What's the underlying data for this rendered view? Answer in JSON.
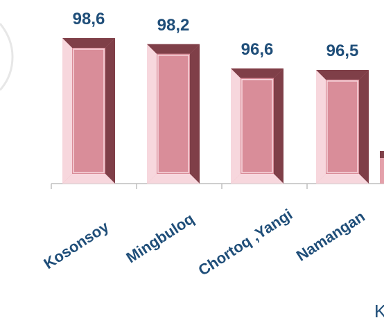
{
  "chart_data": {
    "type": "bar",
    "title": "",
    "xlabel": "",
    "ylabel": "",
    "categories": [
      "Kosonsoy",
      "Mingbuloq",
      "Chortoq ,Yangi",
      "Namangan"
    ],
    "values": [
      98.6,
      98.2,
      96.6,
      96.5
    ],
    "value_labels": [
      "98,6",
      "98,2",
      "96,6",
      "96,5"
    ],
    "grid": false,
    "legend": "none",
    "partial_bar_visible": true
  },
  "partial_text": "K",
  "colors": {
    "bar_face": "#e4a0aa",
    "bar_inner": "#d98d99",
    "bar_dark": "#7f3f48",
    "bar_light": "#f7d7dd",
    "label": "#1f4e79",
    "axis": "#bfbfbf",
    "left_arc": "#e7e7e7"
  }
}
